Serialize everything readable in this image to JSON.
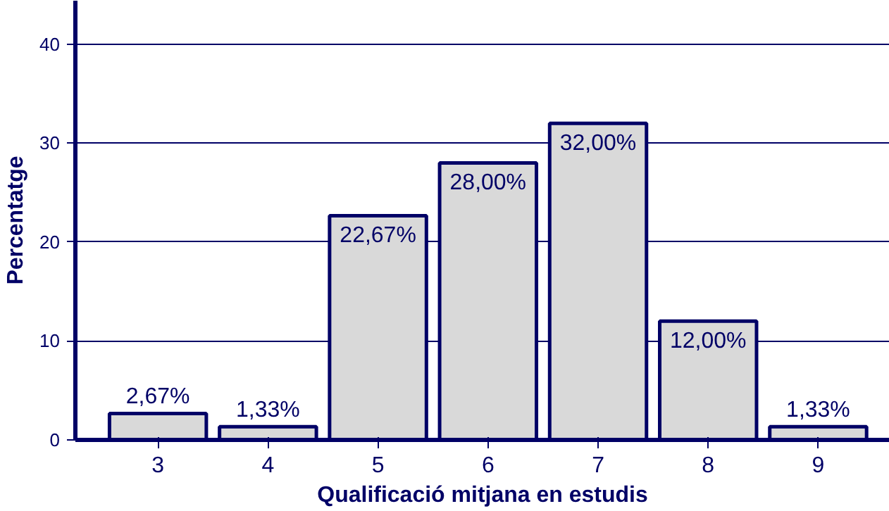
{
  "chart_data": {
    "type": "bar",
    "xlabel": "Qualificació mitjana en estudis",
    "ylabel": "Percentatge",
    "categories": [
      "3",
      "4",
      "5",
      "6",
      "7",
      "8",
      "9"
    ],
    "values": [
      2.67,
      1.33,
      22.67,
      28,
      32,
      12,
      1.33
    ],
    "value_labels": [
      "2,67%",
      "1,33%",
      "22,67%",
      "28,00%",
      "32,00%",
      "12,00%",
      "1,33%"
    ],
    "color": "#d9d9d9",
    "ylim": [
      0,
      44.4
    ],
    "yticks": [
      0,
      10,
      20,
      30,
      40
    ],
    "grid": "y"
  }
}
